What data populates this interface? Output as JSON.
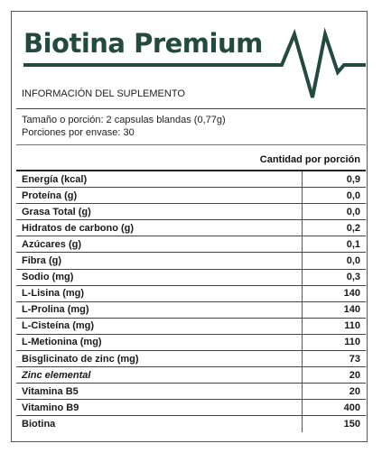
{
  "header": {
    "title": "Biotina Premium",
    "subtitle": "INFORMACIÓN DEL SUPLEMENTO",
    "brand_color": "#234a3e",
    "logo_icon": "pulse-line-icon"
  },
  "serving": {
    "size": "Tamaño o porción: 2 capsulas blandas (0,77g)",
    "servings": "Porciones por envase: 30"
  },
  "table": {
    "column_header": "Cantidad por porción",
    "rows": [
      {
        "name": "Energía (kcal)",
        "value": "0,9"
      },
      {
        "name": "Proteína (g)",
        "value": "0,0"
      },
      {
        "name": "Grasa Total (g)",
        "value": "0,0"
      },
      {
        "name": "Hidratos de carbono (g)",
        "value": "0,2"
      },
      {
        "name": "Azúcares (g)",
        "value": "0,1"
      },
      {
        "name": "Fibra (g)",
        "value": "0,0"
      },
      {
        "name": "Sodio (mg)",
        "value": "0,3"
      },
      {
        "name": "L-Lisina (mg)",
        "value": "140"
      },
      {
        "name": "L-Prolina (mg)",
        "value": "140"
      },
      {
        "name": "L-Cisteína (mg)",
        "value": "110"
      },
      {
        "name": "L-Metionina (mg)",
        "value": "110"
      },
      {
        "name": "Bisglicinato de zinc (mg)",
        "value": "73"
      },
      {
        "name": "Zinc elemental",
        "value": "20"
      },
      {
        "name": "Vitamina B5",
        "value": "20"
      },
      {
        "name": "Vitamino B9",
        "value": "400"
      },
      {
        "name": "Biotina",
        "value": "150"
      }
    ]
  }
}
